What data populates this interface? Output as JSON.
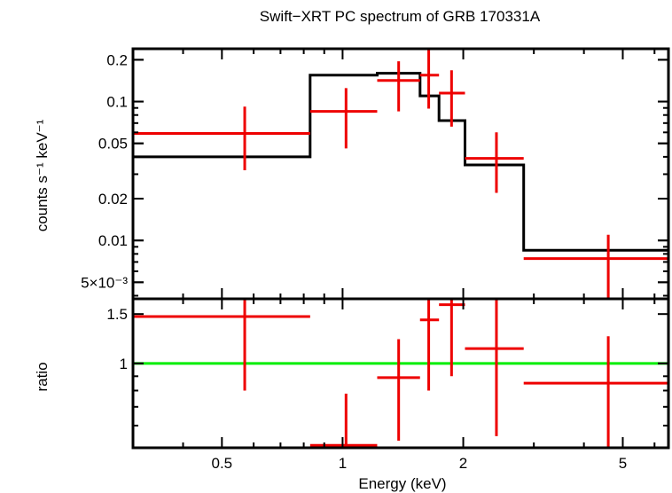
{
  "chart_data": {
    "type": "scatter",
    "title": "Swift−XRT PC spectrum of GRB 170331A",
    "xlabel": "Energy (keV)",
    "x_scale": "log",
    "xlim": [
      0.3,
      6.5
    ],
    "x_ticks": [
      {
        "value": 0.5,
        "label": "0.5"
      },
      {
        "value": 1,
        "label": "1"
      },
      {
        "value": 2,
        "label": "2"
      },
      {
        "value": 5,
        "label": "5"
      }
    ],
    "panels": [
      {
        "name": "spectrum",
        "ylabel": "counts s⁻¹ keV⁻¹",
        "y_scale": "log",
        "ylim": [
          0.0038,
          0.24
        ],
        "y_ticks": [
          {
            "value": 0.2,
            "label": "0.2"
          },
          {
            "value": 0.1,
            "label": "0.1"
          },
          {
            "value": 0.05,
            "label": "0.05"
          },
          {
            "value": 0.02,
            "label": "0.02"
          },
          {
            "value": 0.01,
            "label": "0.01"
          },
          {
            "value": 0.005,
            "label": "5×10⁻³"
          }
        ],
        "data": {
          "color": "#ee0000",
          "points": [
            {
              "x": 0.57,
              "xlo": 0.3,
              "xhi": 0.83,
              "y": 0.059,
              "ylo": 0.032,
              "yhi": 0.092
            },
            {
              "x": 1.02,
              "xlo": 0.83,
              "xhi": 1.22,
              "y": 0.085,
              "ylo": 0.046,
              "yhi": 0.125
            },
            {
              "x": 1.38,
              "xlo": 1.22,
              "xhi": 1.56,
              "y": 0.142,
              "ylo": 0.085,
              "yhi": 0.195
            },
            {
              "x": 1.64,
              "xlo": 1.56,
              "xhi": 1.74,
              "y": 0.155,
              "ylo": 0.089,
              "yhi": 0.24
            },
            {
              "x": 1.87,
              "xlo": 1.74,
              "xhi": 2.02,
              "y": 0.115,
              "ylo": 0.066,
              "yhi": 0.168
            },
            {
              "x": 2.42,
              "xlo": 2.02,
              "xhi": 2.83,
              "y": 0.039,
              "ylo": 0.022,
              "yhi": 0.06
            },
            {
              "x": 4.6,
              "xlo": 2.83,
              "xhi": 6.5,
              "y": 0.0074,
              "ylo": 0.0038,
              "yhi": 0.011
            }
          ]
        },
        "model": {
          "color": "#000000",
          "steps": [
            {
              "xlo": 0.3,
              "xhi": 0.83,
              "y": 0.04
            },
            {
              "xlo": 0.83,
              "xhi": 1.22,
              "y": 0.155
            },
            {
              "xlo": 1.22,
              "xhi": 1.56,
              "y": 0.16
            },
            {
              "xlo": 1.56,
              "xhi": 1.74,
              "y": 0.11
            },
            {
              "xlo": 1.74,
              "xhi": 2.02,
              "y": 0.073
            },
            {
              "xlo": 2.02,
              "xhi": 2.83,
              "y": 0.035
            },
            {
              "xlo": 2.83,
              "xhi": 6.5,
              "y": 0.0085
            }
          ]
        }
      },
      {
        "name": "ratio",
        "ylabel": "ratio",
        "y_scale": "log",
        "ylim": [
          0.5,
          1.7
        ],
        "y_ticks": [
          {
            "value": 1.5,
            "label": "1.5"
          },
          {
            "value": 1,
            "label": "1"
          }
        ],
        "reference_line": {
          "y": 1,
          "color": "#00ee00"
        },
        "data": {
          "color": "#ee0000",
          "points": [
            {
              "x": 0.57,
              "xlo": 0.3,
              "xhi": 0.83,
              "y": 1.47,
              "ylo": 0.8,
              "yhi": 1.7
            },
            {
              "x": 1.02,
              "xlo": 0.83,
              "xhi": 1.22,
              "y": 0.51,
              "ylo": 0.5,
              "yhi": 0.78
            },
            {
              "x": 1.38,
              "xlo": 1.22,
              "xhi": 1.56,
              "y": 0.89,
              "ylo": 0.53,
              "yhi": 1.22
            },
            {
              "x": 1.64,
              "xlo": 1.56,
              "xhi": 1.74,
              "y": 1.43,
              "ylo": 0.8,
              "yhi": 1.7
            },
            {
              "x": 1.87,
              "xlo": 1.74,
              "xhi": 2.02,
              "y": 1.62,
              "ylo": 0.9,
              "yhi": 1.7
            },
            {
              "x": 2.42,
              "xlo": 2.02,
              "xhi": 2.83,
              "y": 1.13,
              "ylo": 0.55,
              "yhi": 1.7
            },
            {
              "x": 4.6,
              "xlo": 2.83,
              "xhi": 6.5,
              "y": 0.85,
              "ylo": 0.5,
              "yhi": 1.25
            }
          ]
        }
      }
    ]
  }
}
